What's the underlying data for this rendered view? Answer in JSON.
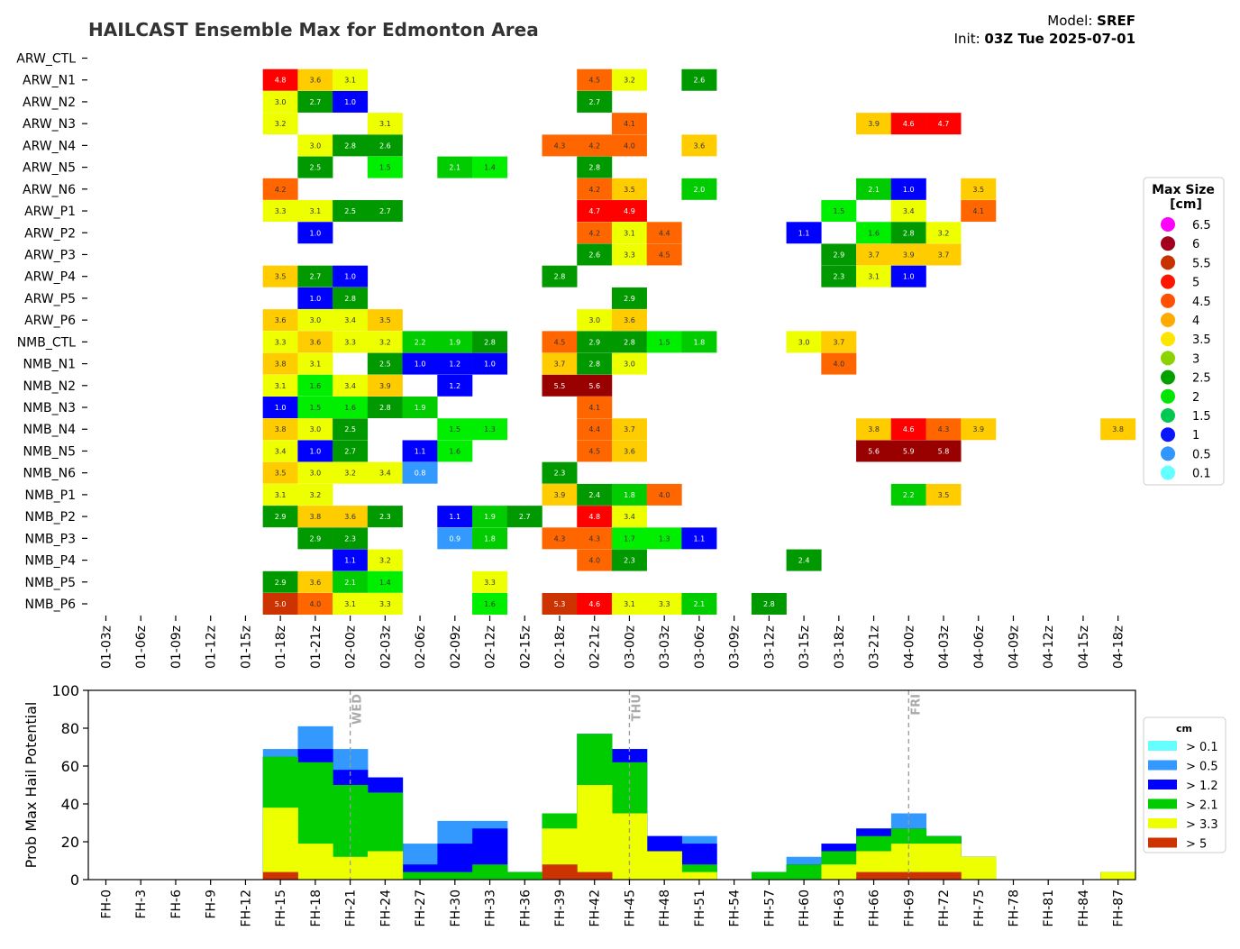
{
  "header": {
    "title": "HAILCAST Ensemble Max for Edmonton Area",
    "model_label": "Model: ",
    "model_value": "SREF",
    "init_label": "Init: ",
    "init_value": "03Z Tue 2025-07-01"
  },
  "chart_data": [
    {
      "type": "heatmap",
      "title": "HAILCAST Ensemble Max for Edmonton Area",
      "members": [
        "ARW_CTL",
        "ARW_N1",
        "ARW_N2",
        "ARW_N3",
        "ARW_N4",
        "ARW_N5",
        "ARW_N6",
        "ARW_P1",
        "ARW_P2",
        "ARW_P3",
        "ARW_P4",
        "ARW_P5",
        "ARW_P6",
        "NMB_CTL",
        "NMB_N1",
        "NMB_N2",
        "NMB_N3",
        "NMB_N4",
        "NMB_N5",
        "NMB_N6",
        "NMB_P1",
        "NMB_P2",
        "NMB_P3",
        "NMB_P4",
        "NMB_P5",
        "NMB_P6"
      ],
      "times": [
        "01-03z",
        "01-06z",
        "01-09z",
        "01-12z",
        "01-15z",
        "01-18z",
        "01-21z",
        "02-00z",
        "02-03z",
        "02-06z",
        "02-09z",
        "02-12z",
        "02-15z",
        "02-18z",
        "02-21z",
        "03-00z",
        "03-03z",
        "03-06z",
        "03-09z",
        "03-12z",
        "03-15z",
        "03-18z",
        "03-21z",
        "04-00z",
        "04-03z",
        "04-06z",
        "04-09z",
        "04-12z",
        "04-15z",
        "04-18z"
      ],
      "cells": [
        [
          1,
          5,
          4.8
        ],
        [
          1,
          6,
          3.6
        ],
        [
          1,
          7,
          3.1
        ],
        [
          1,
          14,
          4.5
        ],
        [
          1,
          15,
          3.2
        ],
        [
          1,
          17,
          2.6
        ],
        [
          2,
          5,
          3.0
        ],
        [
          2,
          6,
          2.7
        ],
        [
          2,
          7,
          1.0
        ],
        [
          2,
          14,
          2.7
        ],
        [
          3,
          5,
          3.2
        ],
        [
          3,
          8,
          3.1
        ],
        [
          3,
          15,
          4.1
        ],
        [
          3,
          22,
          3.9
        ],
        [
          3,
          23,
          4.6
        ],
        [
          3,
          24,
          4.7
        ],
        [
          4,
          6,
          3.0
        ],
        [
          4,
          7,
          2.8
        ],
        [
          4,
          8,
          2.6
        ],
        [
          4,
          13,
          4.3
        ],
        [
          4,
          14,
          4.2
        ],
        [
          4,
          15,
          4.0
        ],
        [
          4,
          17,
          3.6
        ],
        [
          5,
          6,
          2.5
        ],
        [
          5,
          8,
          1.5
        ],
        [
          5,
          10,
          2.1
        ],
        [
          5,
          11,
          1.4
        ],
        [
          5,
          14,
          2.8
        ],
        [
          6,
          5,
          4.2
        ],
        [
          6,
          14,
          4.2
        ],
        [
          6,
          15,
          3.5
        ],
        [
          6,
          17,
          2.0
        ],
        [
          6,
          22,
          2.1
        ],
        [
          6,
          23,
          1.0
        ],
        [
          6,
          25,
          3.5
        ],
        [
          7,
          5,
          3.3
        ],
        [
          7,
          6,
          3.1
        ],
        [
          7,
          7,
          2.5
        ],
        [
          7,
          8,
          2.7
        ],
        [
          7,
          14,
          4.7
        ],
        [
          7,
          15,
          4.9
        ],
        [
          7,
          21,
          1.5
        ],
        [
          7,
          23,
          3.4
        ],
        [
          7,
          25,
          4.1
        ],
        [
          8,
          6,
          1.0
        ],
        [
          8,
          14,
          4.2
        ],
        [
          8,
          15,
          3.1
        ],
        [
          8,
          16,
          4.4
        ],
        [
          8,
          20,
          1.1
        ],
        [
          8,
          22,
          1.6
        ],
        [
          8,
          23,
          2.8
        ],
        [
          8,
          24,
          3.2
        ],
        [
          9,
          14,
          2.6
        ],
        [
          9,
          15,
          3.3
        ],
        [
          9,
          16,
          4.5
        ],
        [
          9,
          21,
          2.9
        ],
        [
          9,
          22,
          3.7
        ],
        [
          9,
          23,
          3.9
        ],
        [
          9,
          24,
          3.7
        ],
        [
          10,
          5,
          3.5
        ],
        [
          10,
          6,
          2.7
        ],
        [
          10,
          7,
          1.0
        ],
        [
          10,
          13,
          2.8
        ],
        [
          10,
          21,
          2.3
        ],
        [
          10,
          22,
          3.1
        ],
        [
          10,
          23,
          1.0
        ],
        [
          11,
          6,
          1.0
        ],
        [
          11,
          7,
          2.8
        ],
        [
          11,
          15,
          2.9
        ],
        [
          12,
          5,
          3.6
        ],
        [
          12,
          6,
          3.0
        ],
        [
          12,
          7,
          3.4
        ],
        [
          12,
          8,
          3.5
        ],
        [
          12,
          14,
          3.0
        ],
        [
          12,
          15,
          3.6
        ],
        [
          13,
          5,
          3.3
        ],
        [
          13,
          6,
          3.6
        ],
        [
          13,
          7,
          3.3
        ],
        [
          13,
          8,
          3.2
        ],
        [
          13,
          9,
          2.2
        ],
        [
          13,
          10,
          1.9
        ],
        [
          13,
          11,
          2.8
        ],
        [
          13,
          13,
          4.5
        ],
        [
          13,
          14,
          2.9
        ],
        [
          13,
          15,
          2.8
        ],
        [
          13,
          16,
          1.5
        ],
        [
          13,
          17,
          1.8
        ],
        [
          13,
          20,
          3.0
        ],
        [
          13,
          21,
          3.7
        ],
        [
          14,
          5,
          3.8
        ],
        [
          14,
          6,
          3.1
        ],
        [
          14,
          8,
          2.5
        ],
        [
          14,
          9,
          1.0
        ],
        [
          14,
          10,
          1.2
        ],
        [
          14,
          11,
          1.0
        ],
        [
          14,
          13,
          3.7
        ],
        [
          14,
          14,
          2.8
        ],
        [
          14,
          15,
          3.0
        ],
        [
          14,
          21,
          4.0
        ],
        [
          15,
          5,
          3.1
        ],
        [
          15,
          6,
          1.6
        ],
        [
          15,
          7,
          3.4
        ],
        [
          15,
          8,
          3.9
        ],
        [
          15,
          10,
          1.2
        ],
        [
          15,
          13,
          5.5
        ],
        [
          15,
          14,
          5.6
        ],
        [
          16,
          5,
          1.0
        ],
        [
          16,
          6,
          1.5
        ],
        [
          16,
          7,
          1.6
        ],
        [
          16,
          8,
          2.8
        ],
        [
          16,
          9,
          1.9
        ],
        [
          16,
          14,
          4.1
        ],
        [
          17,
          5,
          3.8
        ],
        [
          17,
          6,
          3.0
        ],
        [
          17,
          7,
          2.5
        ],
        [
          17,
          10,
          1.5
        ],
        [
          17,
          11,
          1.3
        ],
        [
          17,
          14,
          4.4
        ],
        [
          17,
          15,
          3.7
        ],
        [
          17,
          22,
          3.8
        ],
        [
          17,
          23,
          4.6
        ],
        [
          17,
          24,
          4.3
        ],
        [
          17,
          25,
          3.9
        ],
        [
          17,
          29,
          3.8
        ],
        [
          18,
          5,
          3.4
        ],
        [
          18,
          6,
          1.0
        ],
        [
          18,
          7,
          2.7
        ],
        [
          18,
          9,
          1.1
        ],
        [
          18,
          10,
          1.6
        ],
        [
          18,
          14,
          4.5
        ],
        [
          18,
          15,
          3.6
        ],
        [
          18,
          22,
          5.6
        ],
        [
          18,
          23,
          5.9
        ],
        [
          18,
          24,
          5.8
        ],
        [
          19,
          5,
          3.5
        ],
        [
          19,
          6,
          3.0
        ],
        [
          19,
          7,
          3.2
        ],
        [
          19,
          8,
          3.4
        ],
        [
          19,
          9,
          0.8
        ],
        [
          19,
          13,
          2.3
        ],
        [
          20,
          5,
          3.1
        ],
        [
          20,
          6,
          3.2
        ],
        [
          20,
          13,
          3.9
        ],
        [
          20,
          14,
          2.4
        ],
        [
          20,
          15,
          1.8
        ],
        [
          20,
          16,
          4.0
        ],
        [
          20,
          23,
          2.2
        ],
        [
          20,
          24,
          3.5
        ],
        [
          21,
          5,
          2.9
        ],
        [
          21,
          6,
          3.8
        ],
        [
          21,
          7,
          3.6
        ],
        [
          21,
          8,
          2.3
        ],
        [
          21,
          10,
          1.1
        ],
        [
          21,
          11,
          1.9
        ],
        [
          21,
          12,
          2.7
        ],
        [
          21,
          14,
          4.8
        ],
        [
          21,
          15,
          3.4
        ],
        [
          22,
          6,
          2.9
        ],
        [
          22,
          7,
          2.3
        ],
        [
          22,
          10,
          0.9
        ],
        [
          22,
          11,
          1.8
        ],
        [
          22,
          13,
          4.3
        ],
        [
          22,
          14,
          4.3
        ],
        [
          22,
          15,
          1.7
        ],
        [
          22,
          16,
          1.3
        ],
        [
          22,
          17,
          1.1
        ],
        [
          23,
          7,
          1.1
        ],
        [
          23,
          8,
          3.2
        ],
        [
          23,
          14,
          4.0
        ],
        [
          23,
          15,
          2.3
        ],
        [
          23,
          20,
          2.4
        ],
        [
          24,
          5,
          2.9
        ],
        [
          24,
          6,
          3.6
        ],
        [
          24,
          7,
          2.1
        ],
        [
          24,
          8,
          1.4
        ],
        [
          24,
          11,
          3.3
        ],
        [
          25,
          5,
          5.0
        ],
        [
          25,
          6,
          4.0
        ],
        [
          25,
          7,
          3.1
        ],
        [
          25,
          8,
          3.3
        ],
        [
          25,
          11,
          1.6
        ],
        [
          25,
          13,
          5.3
        ],
        [
          25,
          14,
          4.6
        ],
        [
          25,
          15,
          3.1
        ],
        [
          25,
          16,
          3.3
        ],
        [
          25,
          17,
          2.1
        ],
        [
          25,
          19,
          2.8
        ]
      ],
      "legend": {
        "title_line1": "Max Size",
        "title_line2": "[cm]",
        "placement": "right",
        "items": [
          {
            "label": "6.5",
            "color": "#ff00ff"
          },
          {
            "label": "6",
            "color": "#a0001e"
          },
          {
            "label": "5.5",
            "color": "#c83200"
          },
          {
            "label": "5",
            "color": "#ff1400"
          },
          {
            "label": "4.5",
            "color": "#ff5000"
          },
          {
            "label": "4",
            "color": "#ffaa00"
          },
          {
            "label": "3.5",
            "color": "#ffe600"
          },
          {
            "label": "3",
            "color": "#8cd200"
          },
          {
            "label": "2.5",
            "color": "#00a000"
          },
          {
            "label": "2",
            "color": "#00e600"
          },
          {
            "label": "1.5",
            "color": "#00c850"
          },
          {
            "label": "1",
            "color": "#0a14ff"
          },
          {
            "label": "0.5",
            "color": "#3296ff"
          },
          {
            "label": "0.1",
            "color": "#64ffff"
          }
        ]
      }
    },
    {
      "type": "area",
      "ylabel": "Prob Max Hail Potential",
      "ylim": [
        0,
        100
      ],
      "yticks": [
        "0",
        "20",
        "40",
        "60",
        "80",
        "100"
      ],
      "categories": [
        "FH-0",
        "FH-3",
        "FH-6",
        "FH-9",
        "FH-12",
        "FH-15",
        "FH-18",
        "FH-21",
        "FH-24",
        "FH-27",
        "FH-30",
        "FH-33",
        "FH-36",
        "FH-39",
        "FH-42",
        "FH-45",
        "FH-48",
        "FH-51",
        "FH-54",
        "FH-57",
        "FH-60",
        "FH-63",
        "FH-66",
        "FH-69",
        "FH-72",
        "FH-75",
        "FH-78",
        "FH-81",
        "FH-84",
        "FH-87"
      ],
      "day_markers": [
        {
          "label": "WED",
          "at": 7
        },
        {
          "label": "THU",
          "at": 15
        },
        {
          "label": "FRI",
          "at": 23
        }
      ],
      "series": [
        {
          "name": "> 0.1",
          "color": "#66ffff",
          "values": [
            0,
            0,
            0,
            0,
            0,
            69,
            81,
            69,
            54,
            19,
            31,
            31,
            4,
            35,
            77,
            69,
            23,
            23,
            0,
            4,
            12,
            19,
            27,
            35,
            23,
            12,
            0,
            0,
            0,
            4
          ]
        },
        {
          "name": "> 0.5",
          "color": "#3399ff",
          "values": [
            0,
            0,
            0,
            0,
            0,
            69,
            81,
            69,
            54,
            19,
            31,
            31,
            4,
            35,
            77,
            69,
            23,
            23,
            0,
            4,
            12,
            19,
            27,
            35,
            23,
            12,
            0,
            0,
            0,
            4
          ]
        },
        {
          "name": "> 1.2",
          "color": "#0000ff",
          "values": [
            0,
            0,
            0,
            0,
            0,
            65,
            69,
            58,
            54,
            8,
            19,
            27,
            4,
            35,
            77,
            69,
            23,
            19,
            0,
            4,
            8,
            19,
            27,
            27,
            23,
            12,
            0,
            0,
            0,
            4
          ]
        },
        {
          "name": "> 2.1",
          "color": "#00cc00",
          "values": [
            0,
            0,
            0,
            0,
            0,
            65,
            62,
            50,
            46,
            4,
            4,
            8,
            4,
            35,
            77,
            62,
            15,
            8,
            0,
            4,
            8,
            15,
            23,
            27,
            23,
            12,
            0,
            0,
            0,
            4
          ]
        },
        {
          "name": "> 3.3",
          "color": "#eeff00",
          "values": [
            0,
            0,
            0,
            0,
            0,
            38,
            19,
            12,
            15,
            0,
            0,
            0,
            0,
            27,
            50,
            35,
            15,
            4,
            0,
            0,
            0,
            8,
            15,
            19,
            19,
            12,
            0,
            0,
            0,
            4
          ]
        },
        {
          "name": "> 5",
          "color": "#cc3300",
          "values": [
            0,
            0,
            0,
            0,
            0,
            4,
            0,
            0,
            0,
            0,
            0,
            0,
            0,
            8,
            4,
            0,
            0,
            0,
            0,
            0,
            0,
            0,
            4,
            4,
            4,
            0,
            0,
            0,
            0,
            0
          ]
        }
      ],
      "legend": {
        "title": "cm",
        "placement": "right"
      }
    }
  ]
}
